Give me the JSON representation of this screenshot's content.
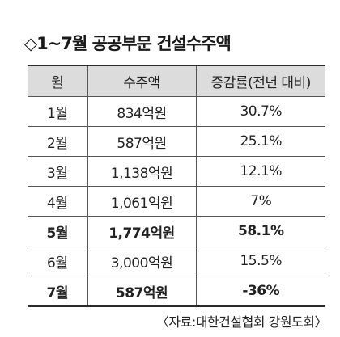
{
  "title": "◇1~7월 공공부문 건설수주액",
  "table": {
    "headers": [
      "월",
      "수주액",
      "증감률(전년 대비)"
    ],
    "rows": [
      {
        "month": "1월",
        "amount": "834억원",
        "growth": "30.7%",
        "bold": false
      },
      {
        "month": "2월",
        "amount": "587억원",
        "growth": "25.1%",
        "bold": false
      },
      {
        "month": "3월",
        "amount": "1,138억원",
        "growth": "12.1%",
        "bold": false
      },
      {
        "month": "4월",
        "amount": "1,061억원",
        "growth": "7%",
        "bold": false
      },
      {
        "month": "5월",
        "amount": "1,774억원",
        "growth": "58.1%",
        "bold": true
      },
      {
        "month": "6월",
        "amount": "3,000억원",
        "growth": "15.5%",
        "bold": false
      },
      {
        "month": "7월",
        "amount": "587억원",
        "growth": "-36%",
        "bold": true
      }
    ]
  },
  "source": "〈자료:대한건설협회 강원도회〉",
  "colors": {
    "header_bg": "#dcdcdc",
    "text": "#222222",
    "rule": "#2a2a2a"
  }
}
